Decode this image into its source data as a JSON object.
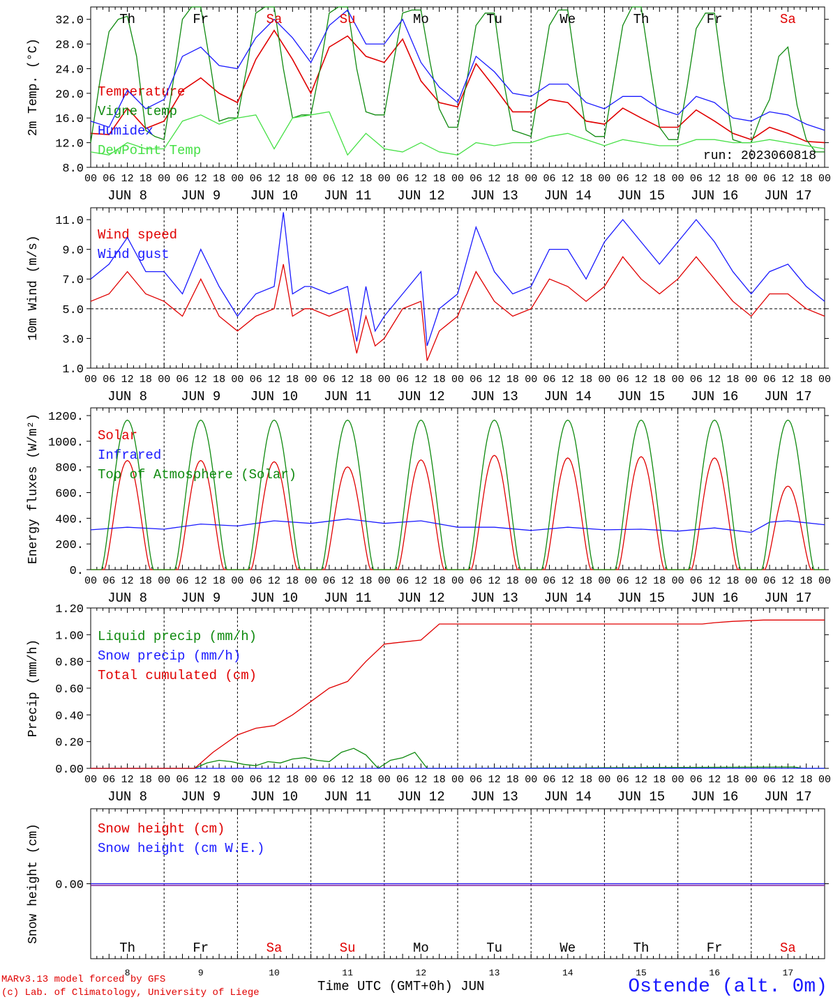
{
  "colors": {
    "red": "#e00000",
    "blue": "#1a1aff",
    "darkgreen": "#0f8a0f",
    "lightgreen": "#46e046",
    "purple": "#8020a0",
    "grid": "#000000"
  },
  "footer": {
    "model": "MARv3.13 model forced by GFS",
    "credit": "(c) Lab. of Climatology, University of Liege",
    "xlabel": "Time UTC (GMT+0h) JUN",
    "station": "Ostende (alt. 0m)"
  },
  "days": {
    "dates": [
      "JUN  8",
      "JUN  9",
      "JUN 10",
      "JUN 11",
      "JUN 12",
      "JUN 13",
      "JUN 14",
      "JUN 15",
      "JUN 16",
      "JUN 17"
    ],
    "weekdays": [
      "Th",
      "Fr",
      "Sa",
      "Su",
      "Mo",
      "Tu",
      "We",
      "Th",
      "Fr",
      "Sa"
    ],
    "weekend": [
      false,
      false,
      true,
      true,
      false,
      false,
      false,
      false,
      false,
      true
    ],
    "numbers": [
      "8",
      "9",
      "10",
      "11",
      "12",
      "13",
      "14",
      "15",
      "16",
      "17"
    ],
    "hour_labels": [
      "00",
      "06",
      "12",
      "18"
    ],
    "final_hour": "00"
  },
  "chart_data": [
    {
      "type": "line",
      "ylabel": "2m Temp. (°C)",
      "ylim": [
        8,
        34
      ],
      "yticks": [
        8,
        12,
        16,
        20,
        24,
        28,
        32
      ],
      "ytick_labels": [
        "8.0",
        "12.0",
        "16.0",
        "20.0",
        "24.0",
        "28.0",
        "32.0"
      ],
      "annotation": "run: 2023060818",
      "x_unit": "hours since JUN 8 00 UTC",
      "series": [
        {
          "name": "Temperature",
          "color": "#e00000",
          "x": [
            0,
            6,
            12,
            18,
            24,
            30,
            36,
            42,
            48,
            54,
            60,
            66,
            72,
            78,
            84,
            90,
            96,
            102,
            108,
            114,
            120,
            126,
            132,
            138,
            144,
            150,
            156,
            162,
            168,
            174,
            180,
            186,
            192,
            198,
            204,
            210,
            216,
            222,
            228,
            234,
            240
          ],
          "y": [
            13.5,
            13.3,
            17.6,
            14.3,
            15.5,
            20.5,
            22.5,
            20.0,
            18.5,
            25.5,
            30.2,
            25.5,
            20.0,
            27.5,
            29.3,
            26.0,
            25.0,
            28.8,
            22.0,
            18.5,
            17.8,
            24.8,
            21.0,
            17.0,
            17.0,
            19.0,
            18.5,
            15.5,
            15.0,
            17.6,
            16.0,
            14.5,
            14.5,
            17.3,
            15.5,
            13.5,
            12.5,
            14.5,
            13.5,
            12.2,
            12.0
          ]
        },
        {
          "name": "Vigne temp",
          "color": "#0f8a0f",
          "x": [
            0,
            3,
            6,
            9,
            12,
            15,
            18,
            21,
            24,
            27,
            30,
            33,
            36,
            39,
            42,
            45,
            48,
            51,
            54,
            57,
            60,
            63,
            66,
            69,
            72,
            75,
            78,
            81,
            84,
            87,
            90,
            93,
            96,
            99,
            102,
            105,
            108,
            111,
            114,
            117,
            120,
            123,
            126,
            129,
            132,
            135,
            138,
            141,
            144,
            147,
            150,
            153,
            156,
            159,
            162,
            165,
            168,
            171,
            174,
            177,
            180,
            183,
            186,
            189,
            192,
            195,
            198,
            201,
            204,
            207,
            210,
            213,
            216,
            219,
            222,
            225,
            228,
            231,
            234,
            237,
            240
          ],
          "y": [
            12.0,
            22.0,
            30.0,
            32.0,
            32.5,
            26.0,
            14.0,
            13.0,
            12.5,
            22.0,
            32.0,
            34.0,
            34.0,
            25.0,
            15.5,
            16.0,
            16.0,
            24.0,
            33.0,
            34.0,
            34.0,
            24.0,
            16.0,
            16.5,
            16.5,
            24.0,
            33.0,
            34.0,
            34.0,
            24.0,
            17.0,
            16.5,
            16.5,
            25.0,
            33.0,
            33.5,
            33.5,
            25.0,
            17.5,
            14.5,
            14.5,
            22.0,
            31.0,
            33.0,
            33.0,
            22.0,
            14.0,
            13.5,
            13.0,
            22.0,
            31.0,
            33.5,
            33.5,
            23.0,
            14.0,
            13.0,
            13.0,
            22.0,
            31.0,
            34.0,
            34.0,
            24.0,
            14.5,
            12.5,
            12.5,
            21.0,
            30.5,
            33.0,
            33.0,
            22.0,
            12.5,
            12.0,
            12.0,
            16.0,
            19.0,
            26.0,
            27.5,
            18.0,
            12.5,
            10.5,
            10.5
          ]
        },
        {
          "name": "Humidex",
          "color": "#1a1aff",
          "x": [
            0,
            6,
            12,
            18,
            24,
            30,
            36,
            42,
            48,
            54,
            60,
            66,
            72,
            78,
            84,
            90,
            96,
            102,
            108,
            114,
            120,
            126,
            132,
            138,
            144,
            150,
            156,
            162,
            168,
            174,
            180,
            186,
            192,
            198,
            204,
            210,
            216,
            222,
            228,
            234,
            240
          ],
          "y": [
            15.5,
            14.5,
            20.5,
            17.5,
            19.0,
            26.0,
            27.5,
            24.5,
            24.0,
            29.0,
            32.0,
            29.0,
            25.0,
            31.0,
            33.5,
            28.0,
            28.0,
            32.0,
            25.0,
            21.0,
            18.5,
            26.0,
            23.5,
            20.0,
            19.5,
            21.5,
            21.5,
            18.5,
            17.5,
            19.5,
            19.5,
            17.5,
            16.5,
            19.5,
            18.5,
            16.0,
            15.5,
            17.0,
            16.5,
            15.0,
            14.0
          ]
        },
        {
          "name": "DewPoint Temp",
          "color": "#46e046",
          "x": [
            0,
            6,
            12,
            18,
            24,
            30,
            36,
            42,
            48,
            54,
            60,
            66,
            72,
            78,
            84,
            90,
            96,
            102,
            108,
            114,
            120,
            126,
            132,
            138,
            144,
            150,
            156,
            162,
            168,
            174,
            180,
            186,
            192,
            198,
            204,
            210,
            216,
            222,
            228,
            234,
            240
          ],
          "y": [
            10.5,
            10.0,
            12.0,
            11.0,
            11.0,
            15.5,
            16.5,
            15.0,
            16.0,
            16.5,
            11.0,
            16.0,
            16.5,
            17.0,
            10.0,
            13.5,
            11.0,
            10.5,
            12.0,
            10.5,
            10.0,
            12.0,
            11.5,
            12.0,
            12.0,
            13.0,
            13.5,
            12.5,
            11.5,
            12.5,
            12.0,
            11.5,
            11.5,
            12.5,
            12.5,
            12.0,
            12.0,
            12.5,
            12.0,
            11.5,
            11.0
          ]
        }
      ]
    },
    {
      "type": "line",
      "ylabel": "10m Wind (m/s)",
      "ylim": [
        1,
        11.8
      ],
      "yticks": [
        1,
        3,
        5,
        7,
        9,
        11
      ],
      "ytick_labels": [
        "1.0",
        "3.0",
        "5.0",
        "7.0",
        "9.0",
        "11.0"
      ],
      "reference_line": 5.0,
      "x_unit": "hours since JUN 8 00 UTC",
      "series": [
        {
          "name": "Wind speed",
          "color": "#e00000",
          "x": [
            0,
            6,
            12,
            18,
            24,
            30,
            36,
            42,
            48,
            54,
            60,
            63,
            66,
            70,
            72,
            78,
            84,
            87,
            90,
            93,
            96,
            102,
            108,
            110,
            114,
            120,
            126,
            132,
            138,
            144,
            150,
            156,
            162,
            168,
            174,
            180,
            186,
            192,
            198,
            204,
            210,
            216,
            222,
            228,
            234,
            240
          ],
          "y": [
            5.5,
            6.0,
            7.5,
            6.0,
            5.5,
            4.5,
            7.0,
            4.5,
            3.5,
            4.5,
            5.0,
            8.0,
            4.5,
            5.0,
            5.0,
            4.5,
            5.0,
            2.0,
            4.5,
            2.5,
            3.0,
            5.0,
            5.5,
            1.5,
            3.5,
            4.5,
            7.5,
            5.5,
            4.5,
            5.0,
            7.0,
            6.5,
            5.5,
            6.5,
            8.5,
            7.0,
            6.0,
            7.0,
            8.5,
            7.0,
            5.5,
            4.5,
            6.0,
            6.0,
            5.0,
            4.5
          ]
        },
        {
          "name": "Wind gust",
          "color": "#1a1aff",
          "x": [
            0,
            6,
            12,
            18,
            24,
            30,
            36,
            42,
            48,
            54,
            60,
            63,
            66,
            70,
            72,
            78,
            84,
            87,
            90,
            93,
            96,
            102,
            108,
            110,
            114,
            120,
            126,
            132,
            138,
            144,
            150,
            156,
            162,
            168,
            174,
            180,
            186,
            192,
            198,
            204,
            210,
            216,
            222,
            228,
            234,
            240
          ],
          "y": [
            7.0,
            8.0,
            9.8,
            7.5,
            7.5,
            6.0,
            9.0,
            6.5,
            4.5,
            6.0,
            6.5,
            11.5,
            6.0,
            6.5,
            6.5,
            6.0,
            6.5,
            2.8,
            6.5,
            3.5,
            4.5,
            6.0,
            7.5,
            2.5,
            5.0,
            6.0,
            10.5,
            7.5,
            6.0,
            6.5,
            9.0,
            9.0,
            7.0,
            9.5,
            11.0,
            9.5,
            8.0,
            9.5,
            11.0,
            9.5,
            7.5,
            6.0,
            7.5,
            8.0,
            6.5,
            5.5
          ]
        }
      ]
    },
    {
      "type": "line",
      "ylabel": "Energy fluxes (W/m²)",
      "ylim": [
        0,
        1260
      ],
      "yticks": [
        0,
        200,
        400,
        600,
        800,
        1000,
        1200
      ],
      "ytick_labels": [
        "0.",
        "200.",
        "400.",
        "600.",
        "800.",
        "1000.",
        "1200."
      ],
      "x_unit": "hours since JUN 8 00 UTC",
      "series": [
        {
          "name": "Solar",
          "color": "#e00000",
          "daily_peak": [
            850,
            850,
            840,
            800,
            855,
            890,
            870,
            880,
            870,
            650
          ]
        },
        {
          "name": "Infrared",
          "color": "#1a1aff",
          "x": [
            0,
            12,
            24,
            36,
            48,
            60,
            72,
            84,
            96,
            108,
            120,
            132,
            144,
            156,
            168,
            180,
            192,
            204,
            216,
            222,
            228,
            240
          ],
          "y": [
            310,
            330,
            315,
            355,
            340,
            380,
            360,
            395,
            360,
            380,
            330,
            330,
            305,
            330,
            310,
            315,
            300,
            325,
            290,
            370,
            380,
            350
          ]
        },
        {
          "name": "Top of Atmosphere (Solar)",
          "color": "#0f8a0f",
          "daily_peak": [
            1165,
            1165,
            1165,
            1165,
            1165,
            1165,
            1165,
            1165,
            1165,
            1165
          ]
        }
      ]
    },
    {
      "type": "line",
      "ylabel": "Precip (mm/h)",
      "ylim": [
        0,
        1.2
      ],
      "yticks": [
        0,
        0.2,
        0.4,
        0.6,
        0.8,
        1.0,
        1.2
      ],
      "ytick_labels": [
        "0.00",
        "0.20",
        "0.40",
        "0.60",
        "0.80",
        "1.00",
        "1.20"
      ],
      "x_unit": "hours since JUN 8 00 UTC",
      "series": [
        {
          "name": "Liquid precip (mm/h)",
          "color": "#0f8a0f",
          "x": [
            0,
            34,
            38,
            42,
            46,
            50,
            54,
            58,
            62,
            66,
            70,
            74,
            78,
            82,
            86,
            90,
            94,
            98,
            102,
            106,
            110,
            114,
            230,
            233,
            240
          ],
          "y": [
            0,
            0,
            0.04,
            0.06,
            0.05,
            0.03,
            0.02,
            0.05,
            0.04,
            0.07,
            0.08,
            0.06,
            0.05,
            0.12,
            0.15,
            0.1,
            0,
            0.06,
            0.08,
            0.12,
            0,
            0,
            0.01,
            0,
            0
          ]
        },
        {
          "name": "Snow precip (mm/h)",
          "color": "#1a1aff",
          "x": [
            0,
            240
          ],
          "y": [
            0,
            0
          ]
        },
        {
          "name": "Total cumulated (cm)",
          "color": "#e00000",
          "x": [
            0,
            34,
            40,
            48,
            54,
            60,
            66,
            72,
            78,
            84,
            90,
            96,
            100,
            108,
            114,
            120,
            132,
            144,
            156,
            168,
            180,
            192,
            200,
            204,
            210,
            220,
            240
          ],
          "y": [
            0,
            0,
            0.12,
            0.25,
            0.3,
            0.32,
            0.4,
            0.5,
            0.6,
            0.65,
            0.8,
            0.93,
            0.94,
            0.96,
            1.08,
            1.08,
            1.08,
            1.08,
            1.08,
            1.08,
            1.08,
            1.08,
            1.08,
            1.09,
            1.1,
            1.11,
            1.11
          ]
        }
      ]
    },
    {
      "type": "line",
      "ylabel": "Snow height (cm)",
      "ylim": [
        -1,
        1
      ],
      "yticks": [
        0
      ],
      "ytick_labels": [
        "0.00"
      ],
      "x_unit": "hours since JUN 8 00 UTC",
      "series": [
        {
          "name": "Snow height (cm)",
          "color": "#e00000",
          "x": [
            0,
            240
          ],
          "y": [
            0,
            0
          ]
        },
        {
          "name": "Snow height (cm W.E.)",
          "color": "#1a1aff",
          "x": [
            0,
            240
          ],
          "y": [
            0,
            0
          ]
        }
      ]
    }
  ]
}
